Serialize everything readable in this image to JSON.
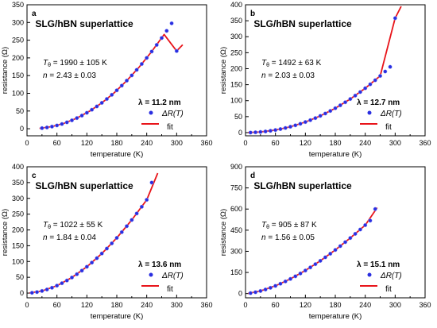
{
  "figure": {
    "panels": [
      {
        "letter": "a",
        "heading": "SLG/hBN superlattice",
        "param1_prefix": "T",
        "param1_sub": "θ",
        "param1_value": " = 1990 ± 105 K",
        "param2_prefix": "n",
        "param2_value": " = 2.43 ± 0.03",
        "lambda_label": "λ = 11.2 nm",
        "legend_data": "ΔR(T)",
        "legend_fit": "fit"
      },
      {
        "letter": "b",
        "heading": "SLG/hBN superlattice",
        "param1_prefix": "T",
        "param1_sub": "θ",
        "param1_value": " = 1492 ± 63 K",
        "param2_prefix": "n",
        "param2_value": " = 2.03 ± 0.03",
        "lambda_label": "λ = 12.7 nm",
        "legend_data": "ΔR(T)",
        "legend_fit": "fit"
      },
      {
        "letter": "c",
        "heading": "SLG/hBN superlattice",
        "param1_prefix": "T",
        "param1_sub": "θ",
        "param1_value": " = 1022 ± 55 K",
        "param2_prefix": "n",
        "param2_value": " = 1.84 ± 0.04",
        "lambda_label": "λ = 13.6 nm",
        "legend_data": "ΔR(T)",
        "legend_fit": "fit"
      },
      {
        "letter": "d",
        "heading": "SLG/hBN superlattice",
        "param1_prefix": "T",
        "param1_sub": "θ",
        "param1_value": " = 905 ± 87 K",
        "param2_prefix": "n",
        "param2_value": " = 1.56 ± 0.05",
        "lambda_label": "λ = 15.1 nm",
        "legend_data": "ΔR(T)",
        "legend_fit": "fit"
      }
    ],
    "colors": {
      "data_marker": "#2a2ee0",
      "fit_line": "#e8141a",
      "axis": "#000000"
    }
  },
  "chart_data": [
    {
      "type": "scatter",
      "panel": "a",
      "xlabel": "temperature (K)",
      "ylabel": "resistance (Ω)",
      "xlim": [
        0,
        360
      ],
      "ylim": [
        -20,
        350
      ],
      "xticks": [
        0,
        60,
        120,
        180,
        240,
        300,
        360
      ],
      "yticks": [
        0,
        50,
        100,
        150,
        200,
        250,
        300,
        350
      ],
      "series": [
        {
          "name": "ΔR(T)",
          "kind": "points",
          "x": [
            30,
            40,
            50,
            60,
            70,
            80,
            90,
            100,
            110,
            120,
            130,
            140,
            150,
            160,
            170,
            180,
            190,
            200,
            210,
            220,
            230,
            240,
            250,
            260,
            270,
            280,
            290,
            300
          ],
          "y": [
            1.7,
            3.5,
            6.0,
            9.3,
            13.3,
            18.1,
            23.7,
            30.1,
            37.1,
            45.0,
            53.6,
            63.0,
            73.1,
            84.0,
            95.8,
            108.4,
            121.7,
            135.8,
            150.6,
            166.3,
            182.8,
            200.0,
            218.0,
            236.7,
            256.2,
            276.4,
            297.6,
            219.4
          ]
        },
        {
          "name": "fit",
          "kind": "line",
          "x": [
            25,
            50,
            75,
            100,
            125,
            150,
            175,
            200,
            225,
            250,
            275,
            300,
            312
          ],
          "y": [
            1.1,
            6.0,
            15.6,
            30.1,
            49.2,
            73.1,
            101.7,
            135.8,
            174.5,
            218.0,
            266.1,
            219.4,
            237.0
          ]
        }
      ]
    },
    {
      "type": "scatter",
      "panel": "b",
      "xlabel": "temperature (K)",
      "ylabel": "resistance (Ω)",
      "xlim": [
        0,
        360
      ],
      "ylim": [
        -10,
        400
      ],
      "xticks": [
        0,
        60,
        120,
        180,
        240,
        300,
        360
      ],
      "yticks": [
        0,
        50,
        100,
        150,
        200,
        250,
        300,
        350,
        400
      ],
      "series": [
        {
          "name": "ΔR(T)",
          "kind": "points",
          "x": [
            10,
            20,
            30,
            40,
            50,
            60,
            70,
            80,
            90,
            100,
            110,
            120,
            130,
            140,
            150,
            160,
            170,
            180,
            190,
            200,
            210,
            220,
            230,
            240,
            250,
            260,
            270,
            280,
            290,
            300
          ],
          "y": [
            0.2,
            0.9,
            2.0,
            3.6,
            5.6,
            8.1,
            11.1,
            14.5,
            18.4,
            22.8,
            27.7,
            33.1,
            39.0,
            45.4,
            52.4,
            59.8,
            67.8,
            76.3,
            85.4,
            95.0,
            105.1,
            115.8,
            127.0,
            138.8,
            151.1,
            163.9,
            177.3,
            191.2,
            205.7,
            358.0
          ]
        },
        {
          "name": "fit",
          "kind": "line",
          "x": [
            5,
            30,
            60,
            90,
            120,
            150,
            180,
            210,
            240,
            270,
            300,
            312
          ],
          "y": [
            0.1,
            2.0,
            8.1,
            18.4,
            33.1,
            52.4,
            76.3,
            105.1,
            138.8,
            177.3,
            358.0,
            395.0
          ]
        }
      ]
    },
    {
      "type": "scatter",
      "panel": "c",
      "xlabel": "temperature (K)",
      "ylabel": "resistance (Ω)",
      "xlim": [
        0,
        360
      ],
      "ylim": [
        -15,
        400
      ],
      "xticks": [
        0,
        60,
        120,
        180,
        240,
        300,
        360
      ],
      "yticks": [
        0,
        50,
        100,
        150,
        200,
        250,
        300,
        350,
        400
      ],
      "series": [
        {
          "name": "ΔR(T)",
          "kind": "points",
          "x": [
            10,
            20,
            30,
            40,
            50,
            60,
            70,
            80,
            90,
            100,
            110,
            120,
            130,
            140,
            150,
            160,
            170,
            180,
            190,
            200,
            210,
            220,
            230,
            240,
            250
          ],
          "y": [
            0.9,
            3.2,
            6.7,
            11.3,
            16.9,
            23.6,
            31.2,
            39.8,
            49.3,
            59.8,
            71.1,
            83.4,
            96.5,
            110.5,
            125.3,
            141.0,
            157.5,
            174.8,
            193.0,
            211.9,
            231.6,
            252.1,
            273.4,
            295.4,
            350.0
          ]
        },
        {
          "name": "fit",
          "kind": "line",
          "x": [
            5,
            30,
            60,
            90,
            120,
            150,
            180,
            210,
            240,
            262
          ],
          "y": [
            0.3,
            6.7,
            23.6,
            49.3,
            83.4,
            125.3,
            174.8,
            231.6,
            295.4,
            380.0
          ]
        }
      ]
    },
    {
      "type": "scatter",
      "panel": "d",
      "xlabel": "temperature (K)",
      "ylabel": "resistance (Ω)",
      "xlim": [
        0,
        360
      ],
      "ylim": [
        -30,
        900
      ],
      "xticks": [
        0,
        60,
        120,
        180,
        240,
        300,
        360
      ],
      "yticks": [
        0,
        150,
        300,
        450,
        600,
        750,
        900
      ],
      "series": [
        {
          "name": "ΔR(T)",
          "kind": "points",
          "x": [
            10,
            20,
            30,
            40,
            50,
            60,
            70,
            80,
            90,
            100,
            110,
            120,
            130,
            140,
            150,
            160,
            170,
            180,
            190,
            200,
            210,
            220,
            230,
            240,
            250,
            260
          ],
          "y": [
            3.3,
            9.8,
            18.5,
            29.0,
            41.2,
            54.9,
            70.0,
            86.4,
            104.0,
            122.8,
            142.7,
            163.7,
            185.7,
            208.7,
            232.6,
            257.4,
            283.1,
            309.7,
            337.1,
            365.3,
            394.3,
            424.1,
            454.6,
            485.9,
            517.9,
            600.0
          ]
        },
        {
          "name": "fit",
          "kind": "line",
          "x": [
            5,
            30,
            60,
            90,
            120,
            150,
            180,
            210,
            240,
            264
          ],
          "y": [
            1.1,
            18.5,
            54.9,
            104.0,
            163.7,
            232.6,
            309.7,
            394.3,
            485.9,
            610.0
          ]
        }
      ]
    }
  ]
}
